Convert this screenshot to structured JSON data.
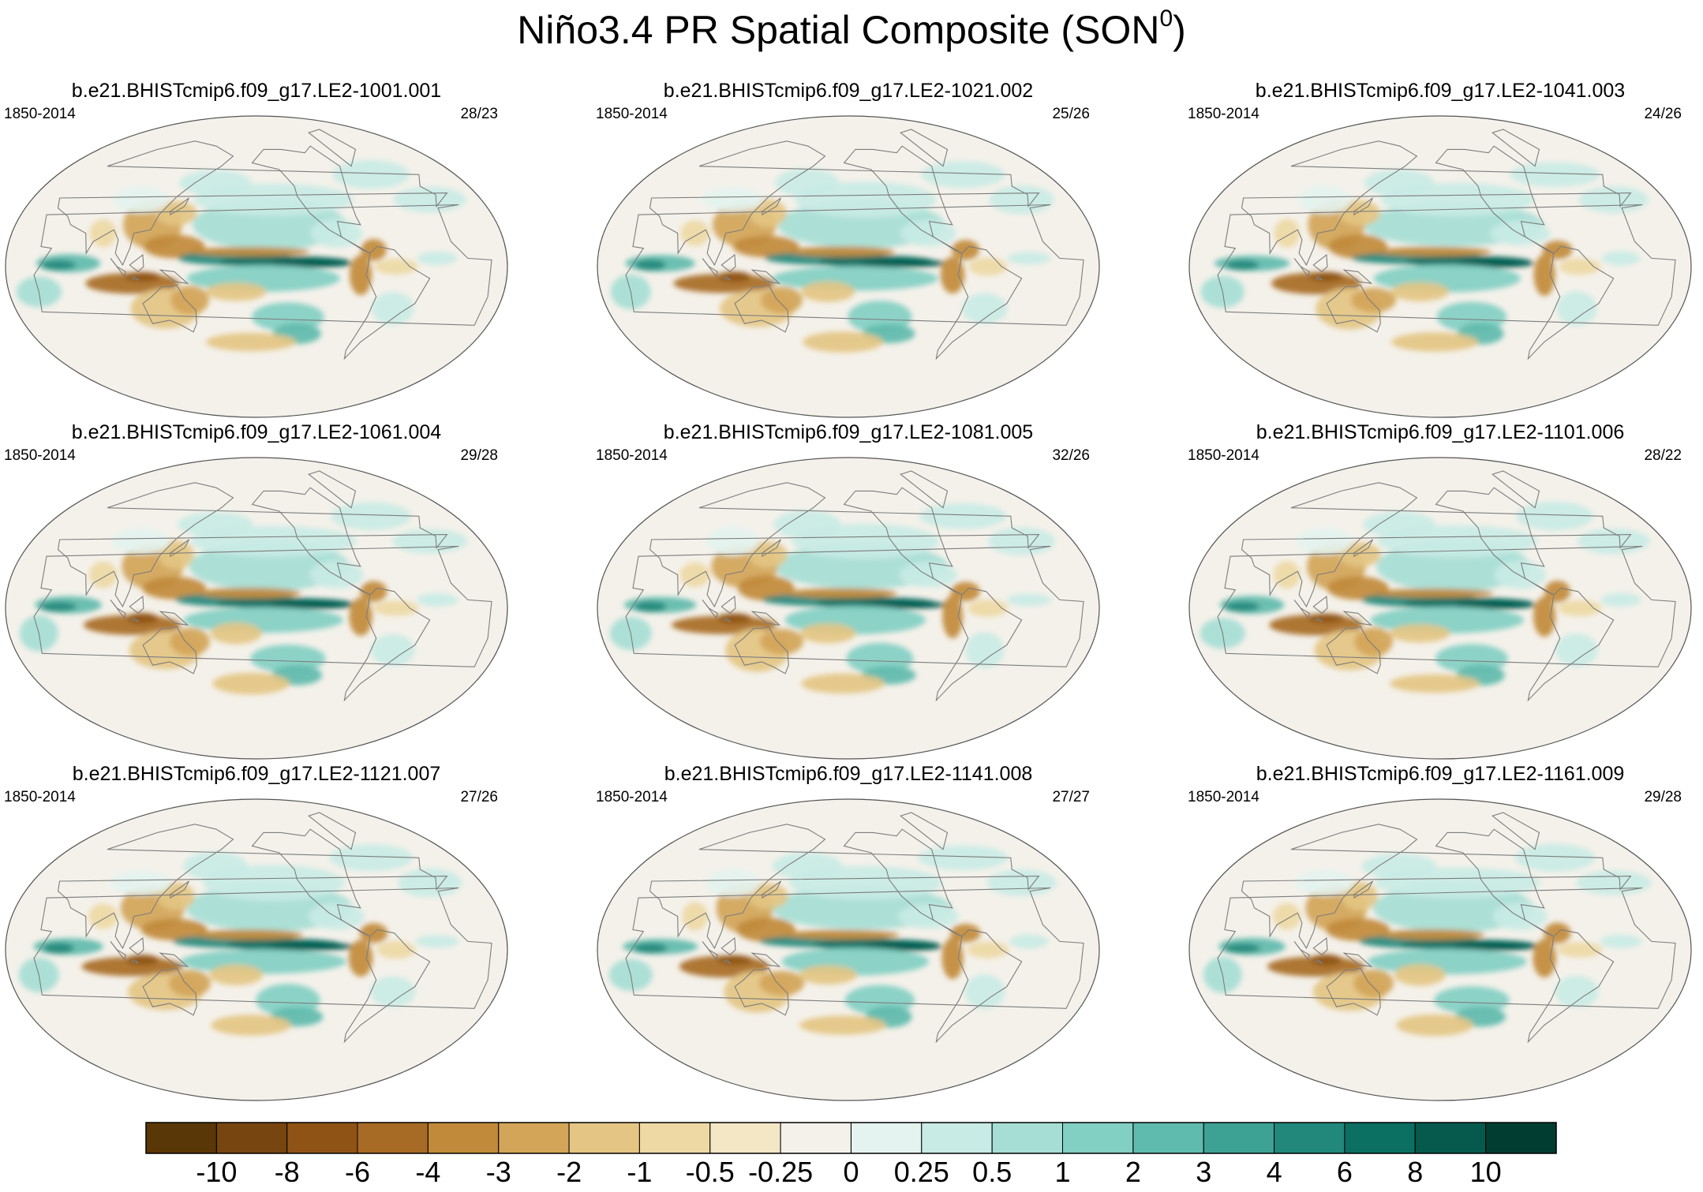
{
  "title": {
    "text": "Niño3.4 PR Spatial Composite (SON",
    "superscript": "0",
    "suffix": ")"
  },
  "colors": {
    "ocean_base": "#f4f1ea",
    "coast": "#7d7d7d",
    "palette": [
      "#5a3706",
      "#774510",
      "#8f5316",
      "#a86b25",
      "#c18a3b",
      "#d3a559",
      "#e4c583",
      "#eed9a5",
      "#f3e7c6",
      "#f4f1ea",
      "#e4f3f0",
      "#c9ebe5",
      "#a6ded5",
      "#82cfc3",
      "#5fbbad",
      "#3da294",
      "#22887b",
      "#0b6f62",
      "#055a4d",
      "#023d32"
    ]
  },
  "chart_data": {
    "type": "contour-map-panels",
    "variable": "PR",
    "index": "Niño3.4",
    "season": "SON",
    "colorbar": {
      "levels": [
        "-10",
        "-8",
        "-6",
        "-4",
        "-3",
        "-2",
        "-1",
        "-0.5",
        "-0.25",
        "0",
        "0.25",
        "0.5",
        "1",
        "2",
        "3",
        "4",
        "6",
        "8",
        "10"
      ],
      "n_colors": 20
    },
    "panels": [
      {
        "title": "b.e21.BHISTcmip6.f09_g17.LE2-1001.001",
        "years": "1850-2014",
        "counts": "28/23"
      },
      {
        "title": "b.e21.BHISTcmip6.f09_g17.LE2-1021.002",
        "years": "1850-2014",
        "counts": "25/26"
      },
      {
        "title": "b.e21.BHISTcmip6.f09_g17.LE2-1041.003",
        "years": "1850-2014",
        "counts": "24/26"
      },
      {
        "title": "b.e21.BHISTcmip6.f09_g17.LE2-1061.004",
        "years": "1850-2014",
        "counts": "29/28"
      },
      {
        "title": "b.e21.BHISTcmip6.f09_g17.LE2-1081.005",
        "years": "1850-2014",
        "counts": "32/26"
      },
      {
        "title": "b.e21.BHISTcmip6.f09_g17.LE2-1101.006",
        "years": "1850-2014",
        "counts": "28/22"
      },
      {
        "title": "b.e21.BHISTcmip6.f09_g17.LE2-1121.007",
        "years": "1850-2014",
        "counts": "27/26"
      },
      {
        "title": "b.e21.BHISTcmip6.f09_g17.LE2-1141.008",
        "years": "1850-2014",
        "counts": "27/27"
      },
      {
        "title": "b.e21.BHISTcmip6.f09_g17.LE2-1161.009",
        "years": "1850-2014",
        "counts": "29/28"
      }
    ]
  }
}
